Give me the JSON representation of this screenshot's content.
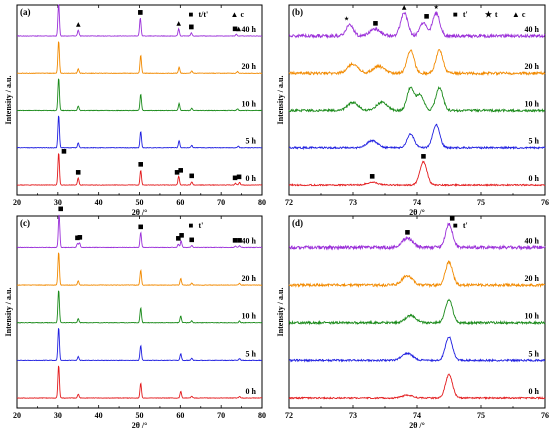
{
  "figure": {
    "ylabel": "Intensity / a.u.",
    "xlabel": "2θ /°"
  },
  "colors": {
    "0 h": "#e31a1c",
    "5 h": "#1f1fe0",
    "10 h": "#1a8a1a",
    "20 h": "#f28a00",
    "40 h": "#9b30d9"
  },
  "chart_data": [
    {
      "type": "line",
      "panel": "(a)",
      "xlabel": "2θ /°",
      "ylabel": "Intensity / a.u.",
      "xlim": [
        20,
        80
      ],
      "xticks": [
        20,
        30,
        40,
        50,
        60,
        70,
        80
      ],
      "series": [
        {
          "name": "0 h",
          "peaks": [
            [
              30.2,
              1.0
            ],
            [
              35.0,
              0.22
            ],
            [
              50.3,
              0.45
            ],
            [
              59.6,
              0.27
            ],
            [
              62.8,
              0.1
            ],
            [
              73.5,
              0.05
            ],
            [
              74.5,
              0.08
            ]
          ]
        },
        {
          "name": "5 h",
          "peaks": [
            [
              30.2,
              1.0
            ],
            [
              35.0,
              0.15
            ],
            [
              50.3,
              0.5
            ],
            [
              59.7,
              0.22
            ],
            [
              62.8,
              0.07
            ],
            [
              74.2,
              0.05
            ]
          ]
        },
        {
          "name": "10 h",
          "peaks": [
            [
              30.2,
              1.0
            ],
            [
              35.0,
              0.13
            ],
            [
              50.3,
              0.5
            ],
            [
              59.7,
              0.22
            ],
            [
              62.8,
              0.07
            ],
            [
              74.0,
              0.05
            ]
          ]
        },
        {
          "name": "20 h",
          "peaks": [
            [
              30.2,
              1.0
            ],
            [
              35.0,
              0.13
            ],
            [
              50.3,
              0.55
            ],
            [
              59.7,
              0.18
            ],
            [
              62.8,
              0.07
            ],
            [
              74.0,
              0.05
            ]
          ]
        },
        {
          "name": "40 h",
          "peaks": [
            [
              30.2,
              1.0
            ],
            [
              35.0,
              0.18
            ],
            [
              50.2,
              0.55
            ],
            [
              59.6,
              0.22
            ],
            [
              62.7,
              0.1
            ],
            [
              73.7,
              0.05
            ]
          ]
        }
      ],
      "legend": [
        {
          "symbol": "■",
          "label": "t/t'"
        },
        {
          "symbol": "▲",
          "label": "c"
        }
      ],
      "markers": [
        {
          "series": "40 h",
          "symbol": "▲",
          "x": 30.2,
          "y": 1.0
        },
        {
          "series": "40 h",
          "symbol": "■",
          "x": 30.2,
          "y": 1.0
        },
        {
          "series": "40 h",
          "symbol": "▲",
          "x": 35.0,
          "y": 0.18
        },
        {
          "series": "40 h",
          "symbol": "▲",
          "x": 50.2,
          "y": 0.55
        },
        {
          "series": "40 h",
          "symbol": "■",
          "x": 50.2,
          "y": 0.55
        },
        {
          "series": "40 h",
          "symbol": "▲",
          "x": 59.6,
          "y": 0.22
        },
        {
          "series": "40 h",
          "symbol": "▲",
          "x": 62.7,
          "y": 0.1
        },
        {
          "series": "40 h",
          "symbol": "■",
          "x": 62.7,
          "y": 0.1
        },
        {
          "series": "40 h",
          "symbol": "■",
          "x": 73.4,
          "y": 0.05
        },
        {
          "series": "40 h",
          "symbol": "▲",
          "x": 74.3,
          "y": 0.05
        },
        {
          "series": "0 h",
          "symbol": "■",
          "x": 31.5,
          "y": 0.85
        },
        {
          "series": "0 h",
          "symbol": "■",
          "x": 35.0,
          "y": 0.22
        },
        {
          "series": "0 h",
          "symbol": "■",
          "x": 50.3,
          "y": 0.45
        },
        {
          "series": "0 h",
          "symbol": "■",
          "x": 59.2,
          "y": 0.22
        },
        {
          "series": "0 h",
          "symbol": "■",
          "x": 60.1,
          "y": 0.27
        },
        {
          "series": "0 h",
          "symbol": "■",
          "x": 62.8,
          "y": 0.1
        },
        {
          "series": "0 h",
          "symbol": "■",
          "x": 73.4,
          "y": 0.05
        },
        {
          "series": "0 h",
          "symbol": "■",
          "x": 74.4,
          "y": 0.08
        }
      ]
    },
    {
      "type": "line",
      "panel": "(b)",
      "xlim": [
        72,
        76
      ],
      "xticks": [
        72,
        73,
        74,
        75,
        76
      ],
      "series": [
        {
          "name": "0 h",
          "peaks": [
            [
              73.3,
              0.12
            ],
            [
              74.1,
              1.0
            ]
          ]
        },
        {
          "name": "5 h",
          "peaks": [
            [
              73.3,
              0.3
            ],
            [
              73.9,
              0.6
            ],
            [
              74.3,
              1.0
            ]
          ]
        },
        {
          "name": "10 h",
          "peaks": [
            [
              73.0,
              0.35
            ],
            [
              73.45,
              0.35
            ],
            [
              73.9,
              1.0
            ],
            [
              74.05,
              0.7
            ],
            [
              74.35,
              1.0
            ]
          ]
        },
        {
          "name": "20 h",
          "peaks": [
            [
              73.0,
              0.4
            ],
            [
              73.4,
              0.3
            ],
            [
              73.9,
              1.0
            ],
            [
              74.35,
              1.0
            ]
          ]
        },
        {
          "name": "40 h",
          "peaks": [
            [
              72.95,
              0.5
            ],
            [
              73.35,
              0.3
            ],
            [
              73.8,
              1.0
            ],
            [
              74.1,
              0.6
            ],
            [
              74.3,
              1.0
            ]
          ]
        }
      ],
      "legend": [
        {
          "symbol": "■",
          "label": "t'"
        },
        {
          "symbol": "★",
          "label": "t"
        },
        {
          "symbol": "▲",
          "label": "c"
        }
      ],
      "markers": [
        {
          "series": "40 h",
          "symbol": "★",
          "x": 72.9,
          "y": 0.5
        },
        {
          "series": "40 h",
          "symbol": "■",
          "x": 73.35,
          "y": 0.3
        },
        {
          "series": "40 h",
          "symbol": "▲",
          "x": 73.8,
          "y": 1.0
        },
        {
          "series": "40 h",
          "symbol": "■",
          "x": 74.15,
          "y": 0.6
        },
        {
          "series": "40 h",
          "symbol": "★",
          "x": 74.3,
          "y": 1.0
        },
        {
          "series": "0 h",
          "symbol": "■",
          "x": 73.3,
          "y": 0.12
        },
        {
          "series": "0 h",
          "symbol": "■",
          "x": 74.1,
          "y": 1.0
        }
      ]
    },
    {
      "type": "line",
      "panel": "(c)",
      "xlabel": "2θ /°",
      "ylabel": "Intensity / a.u.",
      "xlim": [
        20,
        80
      ],
      "xticks": [
        20,
        30,
        40,
        50,
        60,
        70,
        80
      ],
      "series": [
        {
          "name": "0 h",
          "peaks": [
            [
              30.2,
              1.0
            ],
            [
              35.0,
              0.12
            ],
            [
              50.3,
              0.45
            ],
            [
              60.1,
              0.2
            ],
            [
              62.8,
              0.06
            ],
            [
              74.5,
              0.05
            ]
          ]
        },
        {
          "name": "5 h",
          "peaks": [
            [
              30.2,
              1.0
            ],
            [
              35.0,
              0.12
            ],
            [
              50.3,
              0.45
            ],
            [
              60.1,
              0.2
            ],
            [
              62.8,
              0.06
            ],
            [
              74.5,
              0.05
            ]
          ]
        },
        {
          "name": "10 h",
          "peaks": [
            [
              30.2,
              1.0
            ],
            [
              35.0,
              0.12
            ],
            [
              50.3,
              0.45
            ],
            [
              60.1,
              0.2
            ],
            [
              62.8,
              0.06
            ],
            [
              74.5,
              0.05
            ]
          ]
        },
        {
          "name": "20 h",
          "peaks": [
            [
              30.2,
              1.0
            ],
            [
              35.0,
              0.12
            ],
            [
              50.3,
              0.45
            ],
            [
              60.1,
              0.2
            ],
            [
              62.8,
              0.06
            ],
            [
              74.5,
              0.05
            ]
          ]
        },
        {
          "name": "40 h",
          "peaks": [
            [
              30.3,
              1.0
            ],
            [
              34.8,
              0.12
            ],
            [
              35.3,
              0.14
            ],
            [
              50.3,
              0.45
            ],
            [
              59.5,
              0.1
            ],
            [
              60.2,
              0.2
            ],
            [
              62.8,
              0.06
            ],
            [
              73.5,
              0.04
            ],
            [
              74.5,
              0.05
            ]
          ]
        }
      ],
      "legend": [
        {
          "symbol": "■",
          "label": "t'"
        }
      ],
      "markers": [
        {
          "series": "40 h",
          "symbol": "■",
          "x": 30.7,
          "y": 1.0
        },
        {
          "series": "40 h",
          "symbol": "■",
          "x": 34.8,
          "y": 0.12
        },
        {
          "series": "40 h",
          "symbol": "■",
          "x": 35.4,
          "y": 0.14
        },
        {
          "series": "40 h",
          "symbol": "■",
          "x": 50.3,
          "y": 0.45
        },
        {
          "series": "40 h",
          "symbol": "■",
          "x": 59.5,
          "y": 0.1
        },
        {
          "series": "40 h",
          "symbol": "■",
          "x": 60.3,
          "y": 0.2
        },
        {
          "series": "40 h",
          "symbol": "■",
          "x": 62.8,
          "y": 0.06
        },
        {
          "series": "40 h",
          "symbol": "■",
          "x": 73.4,
          "y": 0.04
        },
        {
          "series": "40 h",
          "symbol": "■",
          "x": 74.5,
          "y": 0.05
        }
      ]
    },
    {
      "type": "line",
      "panel": "(d)",
      "xlim": [
        72,
        76
      ],
      "xticks": [
        72,
        73,
        74,
        75,
        76
      ],
      "series": [
        {
          "name": "0 h",
          "peaks": [
            [
              73.85,
              0.12
            ],
            [
              74.5,
              1.0
            ]
          ]
        },
        {
          "name": "5 h",
          "peaks": [
            [
              73.85,
              0.3
            ],
            [
              74.5,
              1.0
            ]
          ]
        },
        {
          "name": "10 h",
          "peaks": [
            [
              73.9,
              0.3
            ],
            [
              74.5,
              1.0
            ]
          ]
        },
        {
          "name": "20 h",
          "peaks": [
            [
              73.85,
              0.4
            ],
            [
              74.5,
              1.0
            ]
          ]
        },
        {
          "name": "40 h",
          "peaks": [
            [
              73.85,
              0.4
            ],
            [
              74.5,
              1.0
            ]
          ]
        }
      ],
      "legend": [
        {
          "symbol": "■",
          "label": "t'"
        }
      ],
      "markers": [
        {
          "series": "40 h",
          "symbol": "■",
          "x": 73.85,
          "y": 0.4
        },
        {
          "series": "40 h",
          "symbol": "■",
          "x": 74.55,
          "y": 1.0
        }
      ]
    }
  ]
}
